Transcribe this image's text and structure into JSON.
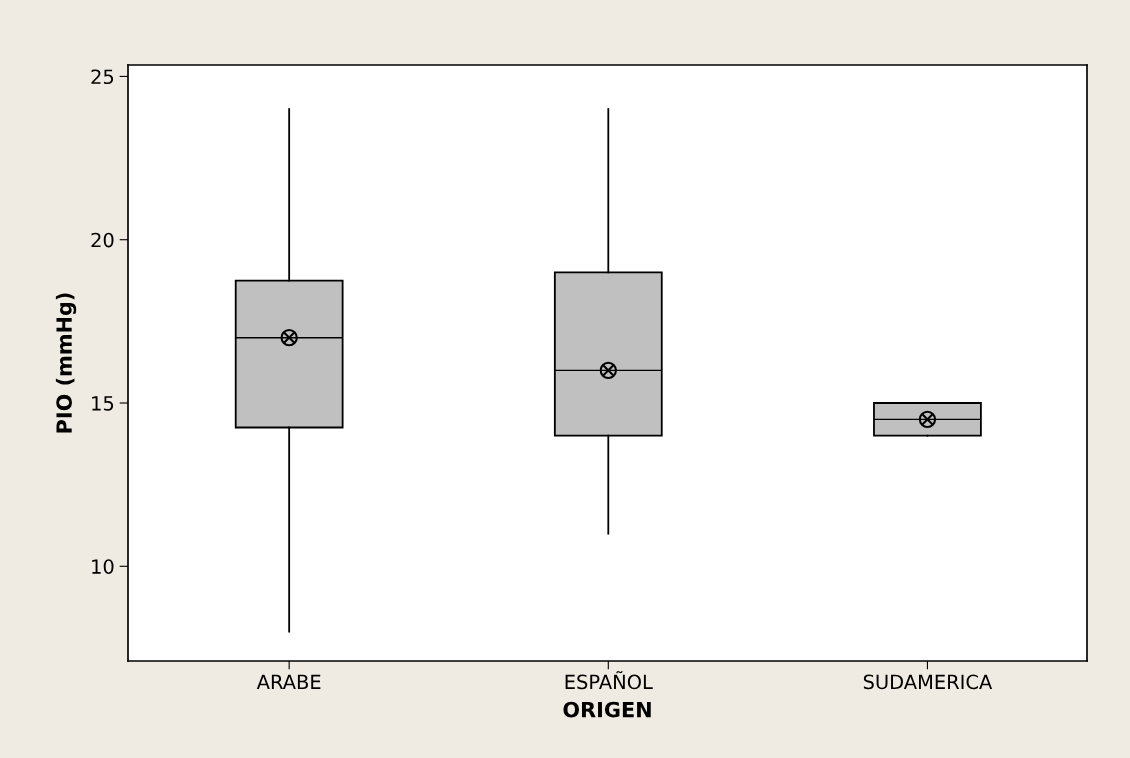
{
  "chart_data": {
    "type": "box",
    "xlabel": "ORIGEN",
    "ylabel": "PIO (mmHg)",
    "categories": [
      "ARABE",
      "ESPAÑOL",
      "SUDAMERICA"
    ],
    "boxes": [
      {
        "low": 8,
        "q1": 14.25,
        "median": 17,
        "q3": 18.75,
        "high": 24,
        "mean": 17
      },
      {
        "low": 11,
        "q1": 14,
        "median": 16,
        "q3": 19,
        "high": 24,
        "mean": 16
      },
      {
        "low": 14,
        "q1": 14,
        "median": 14.5,
        "q3": 15,
        "high": 15,
        "mean": 14.5
      }
    ],
    "color": "#c0c0c0",
    "ylim": [
      7.1,
      25.35
    ],
    "yticks": [
      10,
      15,
      20,
      25
    ],
    "grid": false
  }
}
